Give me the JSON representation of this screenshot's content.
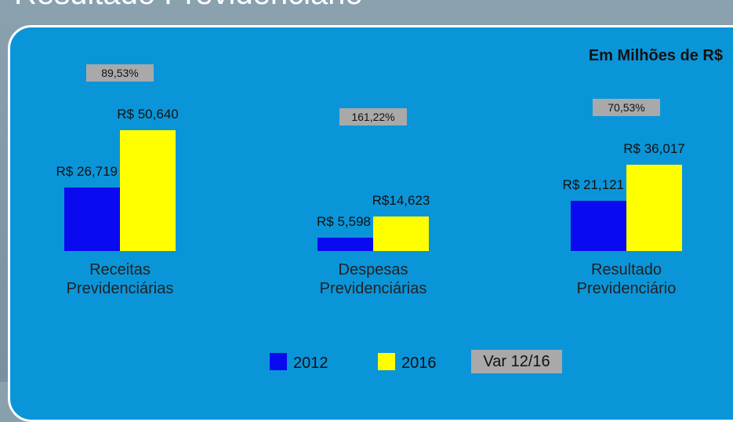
{
  "chart_data": {
    "type": "bar",
    "title": "Resultado Previdenciário",
    "subtitle": "Em Milhões de R$",
    "categories": [
      "Receitas Previdenciárias",
      "Despesas Previdenciárias",
      "Resultado Previdenciário"
    ],
    "series": [
      {
        "name": "2012",
        "color": "#0a0af0",
        "values": [
          26719,
          5598,
          21121
        ],
        "value_labels": [
          "R$ 26,719",
          "R$ 5,598",
          "R$ 21,121"
        ]
      },
      {
        "name": "2016",
        "color": "#ffff00",
        "values": [
          50640,
          14623,
          36017
        ],
        "value_labels": [
          "R$ 50,640",
          "R$14,623",
          "R$ 36,017"
        ]
      }
    ],
    "variation": {
      "name": "Var 12/16",
      "color": "#a9a9a9",
      "values": [
        89.53,
        161.22,
        70.53
      ],
      "value_labels": [
        "89,53%",
        "161,22%",
        "70,53%"
      ]
    }
  }
}
